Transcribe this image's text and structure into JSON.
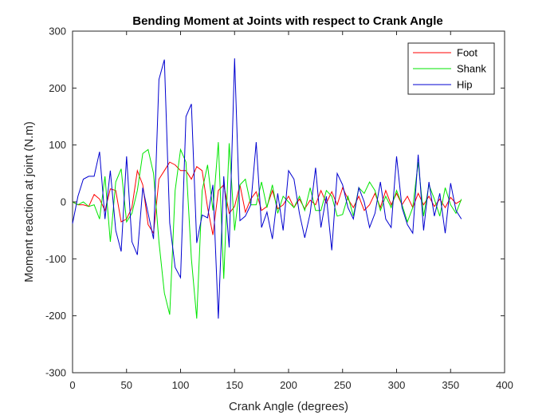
{
  "chart_data": {
    "type": "line",
    "title": "Bending Moment at Joints with respect to Crank Angle",
    "xlabel": "Crank Angle (degrees)",
    "ylabel": "Moment reaction at joint (N.m)",
    "xlim": [
      0,
      400
    ],
    "ylim": [
      -300,
      300
    ],
    "xticks": [
      0,
      50,
      100,
      150,
      200,
      250,
      300,
      350,
      400
    ],
    "yticks": [
      -300,
      -200,
      -100,
      0,
      100,
      200,
      300
    ],
    "xtick_labels": [
      "0",
      "50",
      "100",
      "150",
      "200",
      "250",
      "300",
      "350",
      "400"
    ],
    "ytick_labels": [
      "-300",
      "-200",
      "-100",
      "0",
      "100",
      "200",
      "300"
    ],
    "grid": false,
    "legend_position": "top-right",
    "x": [
      0,
      5,
      10,
      15,
      20,
      25,
      30,
      35,
      40,
      45,
      50,
      55,
      60,
      65,
      70,
      75,
      80,
      85,
      90,
      95,
      100,
      105,
      110,
      115,
      120,
      125,
      130,
      135,
      140,
      145,
      150,
      155,
      160,
      165,
      170,
      175,
      180,
      185,
      190,
      195,
      200,
      205,
      210,
      215,
      220,
      225,
      230,
      235,
      240,
      245,
      250,
      255,
      260,
      265,
      270,
      275,
      280,
      285,
      290,
      295,
      300,
      305,
      310,
      315,
      320,
      325,
      330,
      335,
      340,
      345,
      350,
      355,
      360
    ],
    "series": [
      {
        "name": "Foot",
        "color": "#ff0000",
        "values": [
          0,
          -5,
          -5,
          -8,
          13,
          5,
          -15,
          23,
          20,
          -35,
          -30,
          -10,
          55,
          30,
          -40,
          -55,
          40,
          55,
          70,
          65,
          55,
          55,
          40,
          62,
          55,
          -10,
          -58,
          20,
          30,
          -20,
          -8,
          30,
          -18,
          5,
          18,
          -15,
          -8,
          20,
          -12,
          -5,
          10,
          -10,
          5,
          -12,
          3,
          -5,
          20,
          -2,
          18,
          -5,
          25,
          5,
          -10,
          10,
          -15,
          -5,
          15,
          -10,
          20,
          -5,
          15,
          -5,
          10,
          -10,
          15,
          -5,
          10,
          -8,
          5,
          -10,
          8,
          -3,
          3
        ]
      },
      {
        "name": "Shank",
        "color": "#00e600",
        "values": [
          0,
          -5,
          0,
          -8,
          -5,
          -30,
          45,
          -70,
          35,
          58,
          -35,
          -20,
          20,
          85,
          92,
          50,
          -70,
          -160,
          -198,
          20,
          92,
          70,
          -100,
          -205,
          20,
          65,
          -15,
          105,
          -135,
          103,
          -50,
          30,
          40,
          -5,
          -5,
          35,
          -10,
          30,
          -20,
          10,
          0,
          -10,
          10,
          -15,
          25,
          -15,
          -15,
          20,
          10,
          -25,
          -22,
          10,
          -25,
          25,
          15,
          35,
          20,
          -15,
          10,
          -10,
          20,
          -5,
          -35,
          -10,
          70,
          -25,
          30,
          5,
          -25,
          25,
          -5,
          -20,
          5
        ]
      },
      {
        "name": "Hip",
        "color": "#0000d0",
        "values": [
          -38,
          10,
          40,
          45,
          45,
          88,
          -30,
          55,
          -50,
          -87,
          80,
          -70,
          -93,
          25,
          -20,
          -65,
          215,
          250,
          -37,
          -115,
          -133,
          150,
          172,
          -72,
          -23,
          -28,
          30,
          -205,
          45,
          -80,
          252,
          -33,
          -25,
          -5,
          105,
          -45,
          -18,
          -65,
          15,
          -50,
          55,
          40,
          -20,
          -63,
          -20,
          60,
          -45,
          10,
          -85,
          50,
          30,
          -10,
          -30,
          25,
          0,
          -45,
          -20,
          35,
          -30,
          -45,
          80,
          -10,
          -40,
          -55,
          83,
          -50,
          35,
          -25,
          15,
          -55,
          33,
          -15,
          -30
        ]
      }
    ]
  }
}
